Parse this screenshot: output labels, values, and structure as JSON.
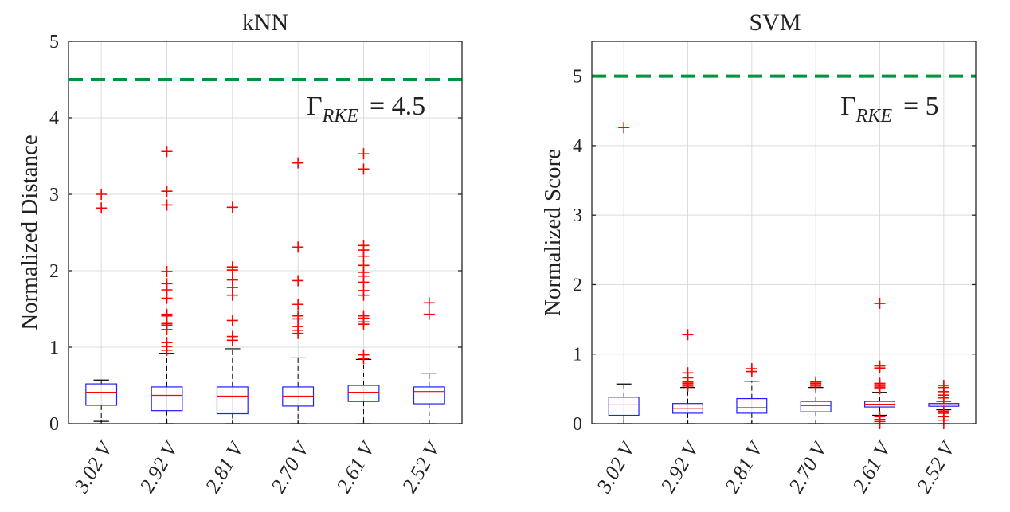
{
  "chart_data": [
    {
      "type": "box",
      "title": "kNN",
      "ylabel": "Normalized Distance",
      "xlabel": "",
      "ylim": [
        0,
        5
      ],
      "yticks": [
        0,
        1,
        2,
        3,
        4,
        5
      ],
      "grid": true,
      "categories": [
        "3.02 V",
        "2.92 V",
        "2.81 V",
        "2.70 V",
        "2.61 V",
        "2.52 V"
      ],
      "boxes": [
        {
          "min": 0.03,
          "q1": 0.24,
          "median": 0.41,
          "q3": 0.52,
          "max": 0.57,
          "outliers": [
            2.82,
            3.0
          ]
        },
        {
          "min": 0.0,
          "q1": 0.17,
          "median": 0.37,
          "q3": 0.48,
          "max": 0.92,
          "outliers": [
            0.96,
            1.01,
            1.06,
            1.23,
            1.29,
            1.31,
            1.41,
            1.43,
            1.64,
            1.75,
            1.83,
            1.99,
            2.86,
            3.04,
            3.56
          ]
        },
        {
          "min": 0.0,
          "q1": 0.13,
          "median": 0.36,
          "q3": 0.48,
          "max": 0.98,
          "outliers": [
            1.09,
            1.14,
            1.35,
            1.68,
            1.78,
            1.88,
            2.01,
            2.05,
            2.83
          ]
        },
        {
          "min": 0.0,
          "q1": 0.23,
          "median": 0.36,
          "q3": 0.48,
          "max": 0.86,
          "outliers": [
            1.18,
            1.22,
            1.27,
            1.37,
            1.41,
            1.56,
            1.87,
            2.31,
            3.41
          ]
        },
        {
          "min": 0.0,
          "q1": 0.29,
          "median": 0.41,
          "q3": 0.5,
          "max": 0.84,
          "outliers": [
            0.85,
            0.9,
            1.3,
            1.33,
            1.38,
            1.41,
            1.68,
            1.74,
            1.85,
            1.93,
            1.98,
            2.07,
            2.19,
            2.27,
            2.33,
            3.33,
            3.53
          ]
        },
        {
          "min": 0.0,
          "q1": 0.26,
          "median": 0.42,
          "q3": 0.48,
          "max": 0.66,
          "outliers": [
            1.43,
            1.58
          ]
        }
      ],
      "threshold": {
        "value": 4.5,
        "color": "#00943c",
        "label_main": "Γ",
        "label_sub": "RKE",
        "label_value": "= 4.5"
      }
    },
    {
      "type": "box",
      "title": "SVM",
      "ylabel": "Normalized Score",
      "xlabel": "",
      "ylim": [
        0,
        5.5
      ],
      "yticks": [
        0,
        1,
        2,
        3,
        4,
        5
      ],
      "grid": true,
      "categories": [
        "3.02 V",
        "2.92 V",
        "2.81 V",
        "2.70 V",
        "2.61 V",
        "2.52 V"
      ],
      "boxes": [
        {
          "min": 0.0,
          "q1": 0.12,
          "median": 0.27,
          "q3": 0.38,
          "max": 0.57,
          "outliers": [
            4.26
          ]
        },
        {
          "min": 0.0,
          "q1": 0.15,
          "median": 0.22,
          "q3": 0.29,
          "max": 0.52,
          "outliers": [
            0.54,
            0.56,
            0.58,
            0.6,
            0.66,
            0.73,
            1.28
          ]
        },
        {
          "min": 0.0,
          "q1": 0.15,
          "median": 0.23,
          "q3": 0.36,
          "max": 0.61,
          "outliers": [
            0.75,
            0.79
          ]
        },
        {
          "min": 0.0,
          "q1": 0.17,
          "median": 0.26,
          "q3": 0.32,
          "max": 0.52,
          "outliers": [
            0.54,
            0.56,
            0.58,
            0.6
          ]
        },
        {
          "min": 0.12,
          "q1": 0.24,
          "median": 0.28,
          "q3": 0.32,
          "max": 0.45,
          "outliers": [
            0.0,
            0.03,
            0.06,
            0.1,
            0.5,
            0.52,
            0.54,
            0.56,
            0.58,
            0.8,
            0.83,
            1.73
          ]
        },
        {
          "min": 0.2,
          "q1": 0.25,
          "median": 0.27,
          "q3": 0.29,
          "max": 0.32,
          "outliers": [
            0.0,
            0.05,
            0.1,
            0.15,
            0.18,
            0.37,
            0.41,
            0.46,
            0.52,
            0.55
          ]
        }
      ],
      "threshold": {
        "value": 5,
        "color": "#00943c",
        "label_main": "Γ",
        "label_sub": "RKE",
        "label_value": "= 5"
      }
    }
  ]
}
